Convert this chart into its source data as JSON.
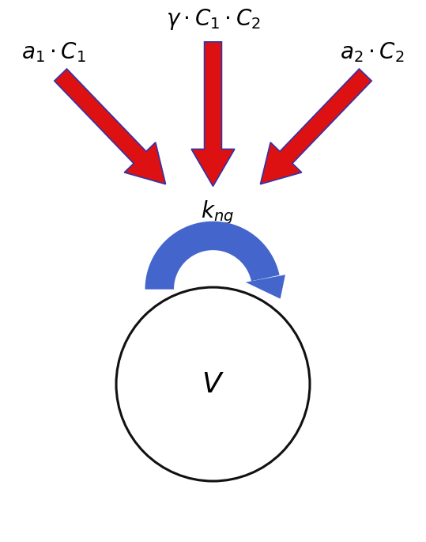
{
  "background_color": "#ffffff",
  "arrow_color": "#dd1111",
  "arrow_edge_color": "#3333aa",
  "loop_color": "#4466cc",
  "circle_color": "#ffffff",
  "circle_edge_color": "#111111",
  "text_color": "#000000",
  "fig_width": 5.39,
  "fig_height": 6.85,
  "label_top": "$\\gamma \\cdot C_1 \\cdot C_2$",
  "label_left": "$a_1 \\cdot C_1$",
  "label_right": "$a_2 \\cdot C_2$",
  "label_kng": "$k_{ng}$",
  "label_V": "$V$",
  "font_size_labels": 20,
  "font_size_kng": 20,
  "font_size_V": 26
}
